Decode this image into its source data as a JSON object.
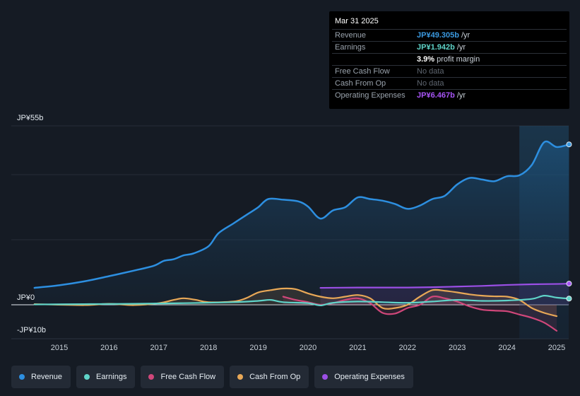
{
  "tooltip": {
    "date": "Mar 31 2025",
    "rows": [
      {
        "label": "Revenue",
        "value": "JP¥49.305b",
        "unit": "/yr",
        "color": "#3b9ae1"
      },
      {
        "label": "Earnings",
        "value": "JP¥1.942b",
        "unit": "/yr",
        "color": "#5fd4c9"
      },
      {
        "label": "",
        "value": "3.9%",
        "unit": "profit margin",
        "color": "#ffffff"
      },
      {
        "label": "Free Cash Flow",
        "value": "No data",
        "unit": "",
        "color": "#5f6670"
      },
      {
        "label": "Cash From Op",
        "value": "No data",
        "unit": "",
        "color": "#5f6670"
      },
      {
        "label": "Operating Expenses",
        "value": "JP¥6.467b",
        "unit": "/yr",
        "color": "#a855f7"
      }
    ]
  },
  "legend": [
    {
      "label": "Revenue",
      "color": "#2d8fe0"
    },
    {
      "label": "Earnings",
      "color": "#5fd4c9"
    },
    {
      "label": "Free Cash Flow",
      "color": "#d0477a"
    },
    {
      "label": "Cash From Op",
      "color": "#e8a857"
    },
    {
      "label": "Operating Expenses",
      "color": "#9b4fe6"
    }
  ],
  "chart_data": {
    "type": "line",
    "title": "",
    "ylabels": {
      "top": "JP¥55b",
      "zero": "JP¥0",
      "bottom": "-JP¥10b"
    },
    "ylim": [
      -10,
      55
    ],
    "xlim": [
      2014.5,
      2025.25
    ],
    "x_ticks": [
      "2015",
      "2016",
      "2017",
      "2018",
      "2019",
      "2020",
      "2021",
      "2022",
      "2023",
      "2024",
      "2025"
    ],
    "forecast_start": 2024.25,
    "series": [
      {
        "name": "Revenue",
        "color": "#2d8fe0",
        "points": [
          [
            2014.5,
            5.2
          ],
          [
            2015.0,
            6.0
          ],
          [
            2015.5,
            7.2
          ],
          [
            2016.0,
            8.8
          ],
          [
            2016.5,
            10.5
          ],
          [
            2016.9,
            12.0
          ],
          [
            2017.1,
            13.5
          ],
          [
            2017.3,
            14.0
          ],
          [
            2017.5,
            15.2
          ],
          [
            2017.7,
            15.8
          ],
          [
            2018.0,
            18.0
          ],
          [
            2018.2,
            22.0
          ],
          [
            2018.5,
            25.0
          ],
          [
            2018.8,
            28.0
          ],
          [
            2019.0,
            30.0
          ],
          [
            2019.2,
            32.5
          ],
          [
            2019.5,
            32.3
          ],
          [
            2019.8,
            31.8
          ],
          [
            2020.0,
            30.2
          ],
          [
            2020.25,
            26.5
          ],
          [
            2020.5,
            29.0
          ],
          [
            2020.75,
            30.0
          ],
          [
            2021.0,
            33.0
          ],
          [
            2021.25,
            32.5
          ],
          [
            2021.5,
            32.0
          ],
          [
            2021.75,
            31.0
          ],
          [
            2022.0,
            29.5
          ],
          [
            2022.25,
            30.5
          ],
          [
            2022.5,
            32.5
          ],
          [
            2022.75,
            33.5
          ],
          [
            2023.0,
            37.0
          ],
          [
            2023.25,
            39.0
          ],
          [
            2023.5,
            38.5
          ],
          [
            2023.75,
            38.0
          ],
          [
            2024.0,
            39.5
          ],
          [
            2024.25,
            39.8
          ],
          [
            2024.5,
            43.0
          ],
          [
            2024.75,
            50.0
          ],
          [
            2025.0,
            48.5
          ],
          [
            2025.25,
            49.3
          ]
        ]
      },
      {
        "name": "Earnings",
        "color": "#5fd4c9",
        "points": [
          [
            2014.5,
            0.1
          ],
          [
            2015.5,
            0.2
          ],
          [
            2016.5,
            0.3
          ],
          [
            2017.5,
            0.5
          ],
          [
            2018.5,
            0.8
          ],
          [
            2019.0,
            1.2
          ],
          [
            2019.25,
            1.5
          ],
          [
            2019.5,
            0.8
          ],
          [
            2020.0,
            0.5
          ],
          [
            2020.25,
            -0.2
          ],
          [
            2020.5,
            0.6
          ],
          [
            2021.0,
            1.0
          ],
          [
            2021.5,
            0.8
          ],
          [
            2022.0,
            0.6
          ],
          [
            2022.5,
            1.0
          ],
          [
            2023.0,
            1.5
          ],
          [
            2023.5,
            1.2
          ],
          [
            2024.0,
            1.3
          ],
          [
            2024.5,
            1.8
          ],
          [
            2024.75,
            2.8
          ],
          [
            2025.0,
            2.2
          ],
          [
            2025.25,
            1.9
          ]
        ]
      },
      {
        "name": "Free Cash Flow",
        "color": "#d0477a",
        "points": [
          [
            2019.5,
            2.5
          ],
          [
            2019.75,
            1.5
          ],
          [
            2020.0,
            0.8
          ],
          [
            2020.25,
            0.0
          ],
          [
            2020.5,
            0.5
          ],
          [
            2020.75,
            1.5
          ],
          [
            2021.0,
            2.0
          ],
          [
            2021.25,
            0.5
          ],
          [
            2021.5,
            -2.5
          ],
          [
            2021.75,
            -2.7
          ],
          [
            2022.0,
            -1.0
          ],
          [
            2022.25,
            0.0
          ],
          [
            2022.5,
            2.5
          ],
          [
            2022.75,
            2.0
          ],
          [
            2023.0,
            1.0
          ],
          [
            2023.25,
            -0.5
          ],
          [
            2023.5,
            -1.5
          ],
          [
            2023.75,
            -1.8
          ],
          [
            2024.0,
            -2.0
          ],
          [
            2024.25,
            -3.0
          ],
          [
            2024.5,
            -4.0
          ],
          [
            2024.75,
            -5.5
          ],
          [
            2025.0,
            -8.0
          ]
        ]
      },
      {
        "name": "Cash From Op",
        "color": "#e8a857",
        "points": [
          [
            2014.5,
            0.2
          ],
          [
            2015.5,
            -0.1
          ],
          [
            2016.0,
            0.3
          ],
          [
            2016.5,
            -0.1
          ],
          [
            2017.0,
            0.5
          ],
          [
            2017.3,
            1.5
          ],
          [
            2017.5,
            2.0
          ],
          [
            2017.75,
            1.5
          ],
          [
            2018.0,
            0.8
          ],
          [
            2018.5,
            1.0
          ],
          [
            2018.75,
            2.0
          ],
          [
            2019.0,
            3.8
          ],
          [
            2019.25,
            4.5
          ],
          [
            2019.5,
            5.0
          ],
          [
            2019.75,
            4.8
          ],
          [
            2020.0,
            3.5
          ],
          [
            2020.25,
            2.5
          ],
          [
            2020.5,
            2.0
          ],
          [
            2020.75,
            2.5
          ],
          [
            2021.0,
            3.0
          ],
          [
            2021.25,
            2.0
          ],
          [
            2021.5,
            -1.0
          ],
          [
            2021.75,
            -1.0
          ],
          [
            2022.0,
            0.0
          ],
          [
            2022.25,
            2.5
          ],
          [
            2022.5,
            4.5
          ],
          [
            2022.75,
            4.3
          ],
          [
            2023.0,
            3.8
          ],
          [
            2023.25,
            3.2
          ],
          [
            2023.5,
            2.8
          ],
          [
            2023.75,
            2.6
          ],
          [
            2024.0,
            2.5
          ],
          [
            2024.25,
            1.5
          ],
          [
            2024.5,
            -1.0
          ],
          [
            2024.75,
            -2.5
          ],
          [
            2025.0,
            -3.5
          ]
        ]
      },
      {
        "name": "Operating Expenses",
        "color": "#9b4fe6",
        "points": [
          [
            2020.25,
            5.2
          ],
          [
            2021.0,
            5.3
          ],
          [
            2021.5,
            5.3
          ],
          [
            2022.0,
            5.3
          ],
          [
            2022.5,
            5.4
          ],
          [
            2023.0,
            5.6
          ],
          [
            2023.5,
            5.8
          ],
          [
            2024.0,
            6.1
          ],
          [
            2024.5,
            6.3
          ],
          [
            2025.0,
            6.4
          ],
          [
            2025.25,
            6.5
          ]
        ]
      }
    ]
  }
}
